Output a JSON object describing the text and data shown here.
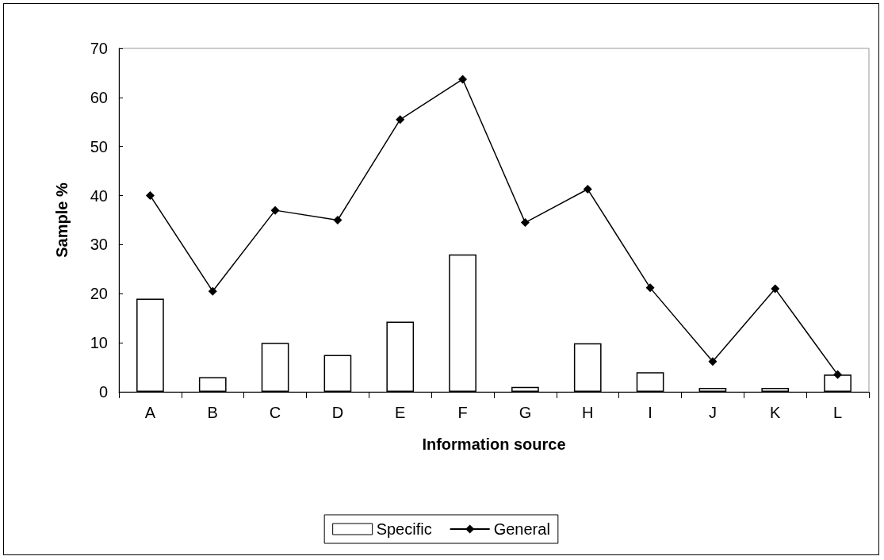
{
  "chart_data": {
    "type": "bar",
    "xlabel": "Information source",
    "ylabel": "Sample %",
    "categories": [
      "A",
      "B",
      "C",
      "D",
      "E",
      "F",
      "G",
      "H",
      "I",
      "J",
      "K",
      "L"
    ],
    "series": [
      {
        "name": "Specific",
        "color": "#ffffff",
        "values": [
          19,
          3,
          10,
          7.5,
          14.3,
          28,
          1,
          9.9,
          4,
          0.8,
          0.8,
          3.5
        ]
      },
      {
        "name": "General",
        "type": "line",
        "color": "#000000",
        "marker": "diamond",
        "values": [
          40,
          20.5,
          37,
          35,
          55.5,
          63.7,
          34.5,
          41.3,
          21.2,
          6.2,
          21,
          3.5
        ]
      }
    ],
    "ylim": [
      0,
      70
    ],
    "yticks": [
      0,
      10,
      20,
      30,
      40,
      50,
      60,
      70
    ],
    "grid": false,
    "legend": "bottom"
  }
}
